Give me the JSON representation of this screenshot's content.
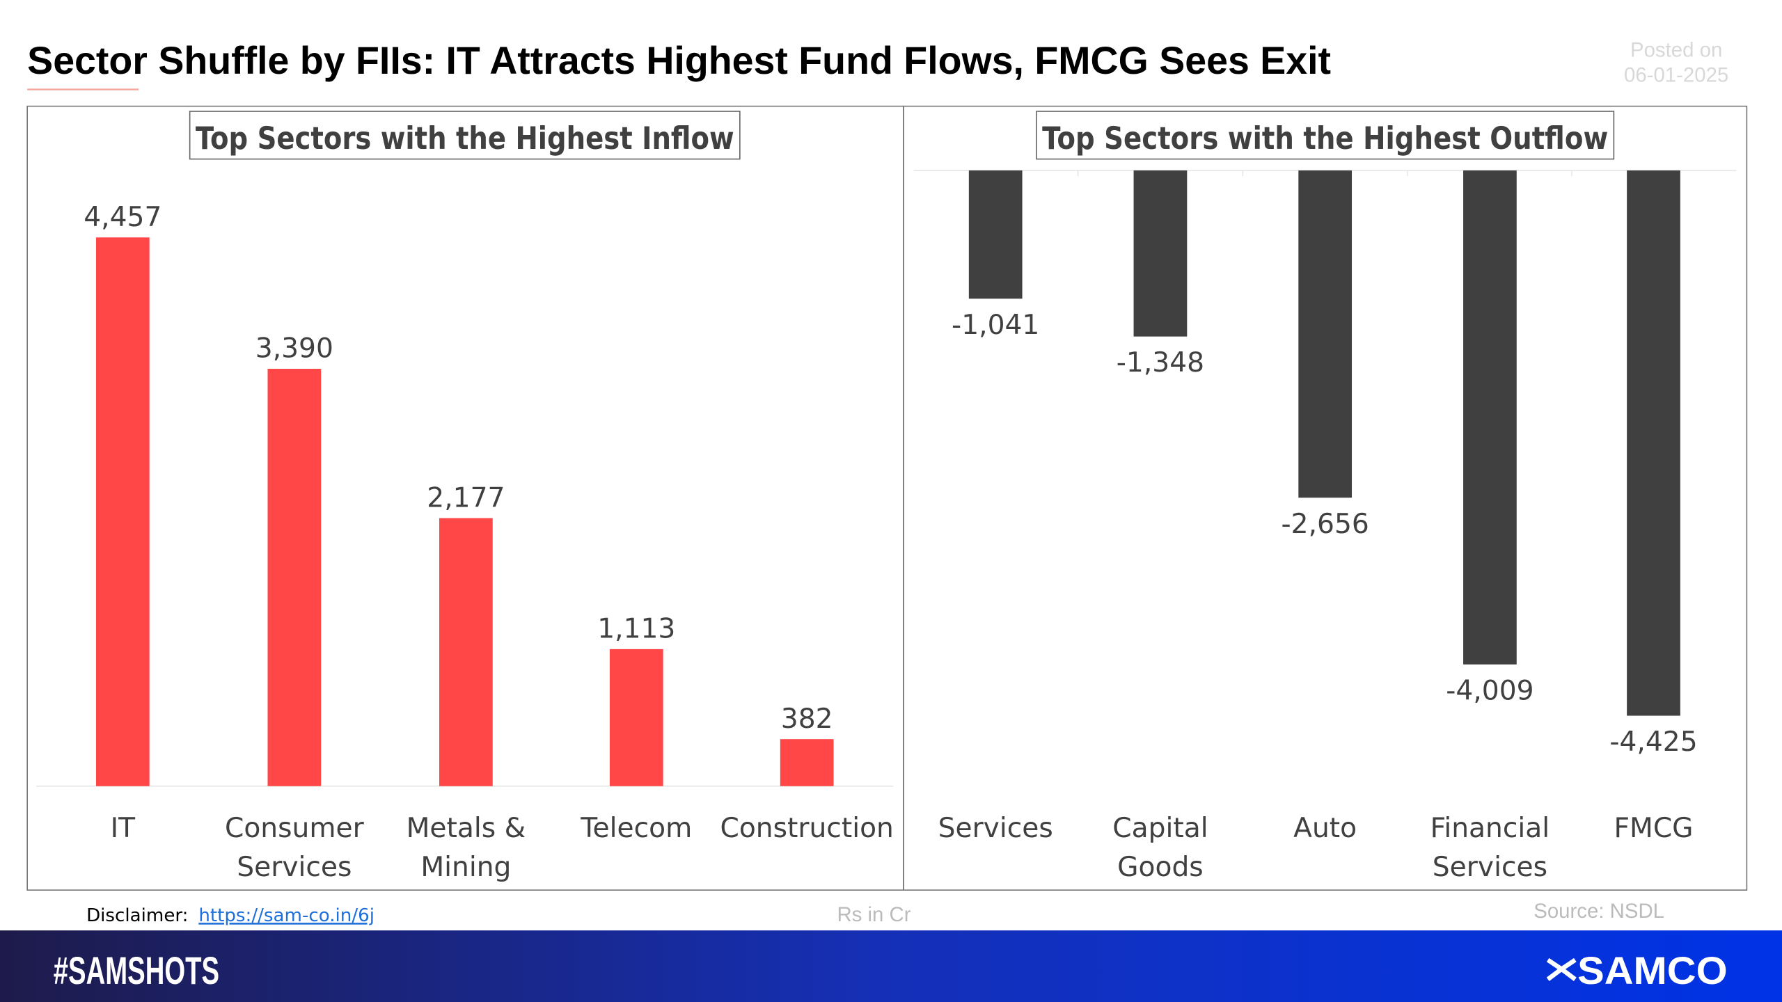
{
  "header": {
    "title": "Sector Shuffle by FIIs: IT Attracts Highest Fund Flows, FMCG Sees Exit",
    "posted_label": "Posted on",
    "posted_date": "06-01-2025"
  },
  "colors": {
    "inflow": "#FF4747",
    "outflow": "#404040",
    "banner_left": "#1E1B4B",
    "banner_right": "#0033E6",
    "link": "#1E6FD9"
  },
  "chart_data": [
    {
      "type": "bar",
      "title": "Top Sectors with the Highest Inflow",
      "categories": [
        [
          "IT"
        ],
        [
          "Consumer",
          "Services"
        ],
        [
          "Metals &",
          "Mining"
        ],
        [
          "Telecom"
        ],
        [
          "Construction"
        ]
      ],
      "values": [
        4457,
        3390,
        2177,
        1113,
        382
      ],
      "data_labels": [
        "4,457",
        "3,390",
        "2,177",
        "1,113",
        "382"
      ],
      "ylim": [
        0,
        4457
      ],
      "grid": false,
      "color": "#FF4747"
    },
    {
      "type": "bar",
      "title": "Top Sectors with the Highest Outflow",
      "categories": [
        [
          "Services"
        ],
        [
          "Capital",
          "Goods"
        ],
        [
          "Auto"
        ],
        [
          "Financial",
          "Services"
        ],
        [
          "FMCG"
        ]
      ],
      "values": [
        -1041,
        -1348,
        -2656,
        -4009,
        -4425
      ],
      "data_labels": [
        "-1,041",
        "-1,348",
        "-2,656",
        "-4,009",
        "-4,425"
      ],
      "ylim": [
        -4425,
        0
      ],
      "grid": false,
      "color": "#404040"
    }
  ],
  "footer": {
    "disclaimer_label": "Disclaimer:",
    "disclaimer_link": "https://sam-co.in/6j",
    "units": "Rs in Cr",
    "source": "Source: NSDL",
    "hashtag": "#SAMSHOTS",
    "brand": "SAMCO"
  }
}
